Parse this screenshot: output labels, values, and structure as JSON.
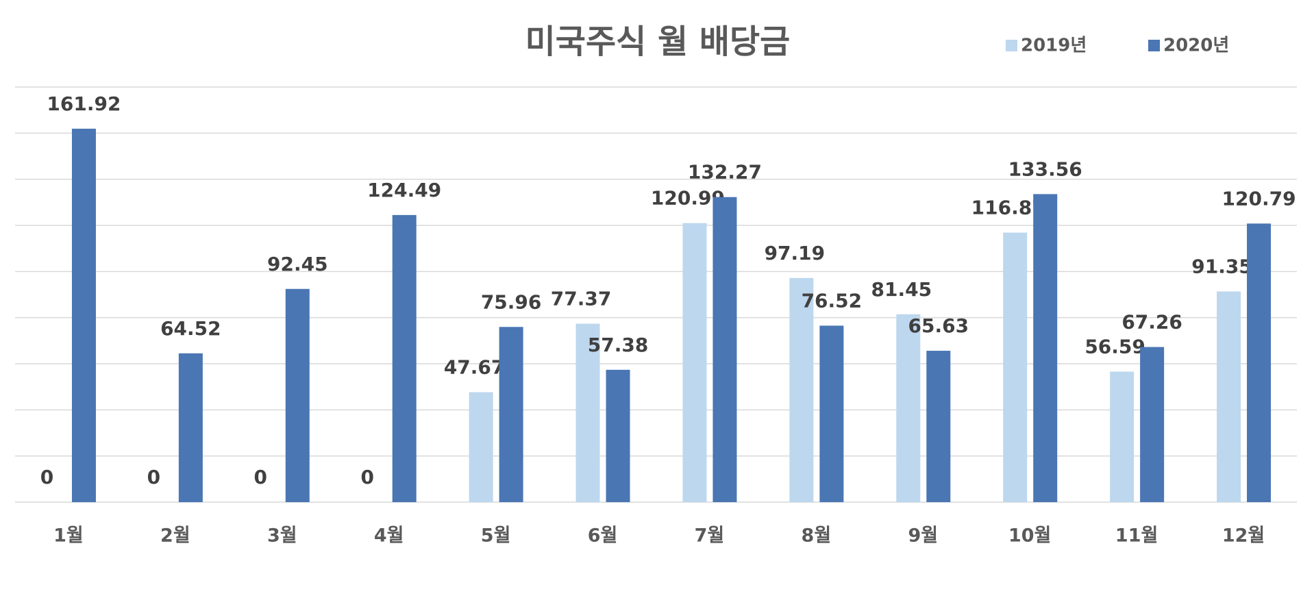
{
  "chart_data": {
    "type": "bar",
    "title": "미국주식 월 배당금",
    "categories": [
      "1월",
      "2월",
      "3월",
      "4월",
      "5월",
      "6월",
      "7월",
      "8월",
      "9월",
      "10월",
      "11월",
      "12월"
    ],
    "series": [
      {
        "name": "2019년",
        "color": "#bdd7ee",
        "values": [
          0,
          0,
          0,
          0,
          47.67,
          77.37,
          120.99,
          97.19,
          81.45,
          116.87,
          56.59,
          91.35
        ]
      },
      {
        "name": "2020년",
        "color": "#4a76b3",
        "values": [
          161.92,
          64.52,
          92.45,
          124.49,
          75.96,
          57.38,
          132.27,
          76.52,
          65.63,
          133.56,
          67.26,
          120.79
        ]
      }
    ],
    "ylim": [
      0,
      180
    ],
    "yticks": [
      0,
      20,
      40,
      60,
      80,
      100,
      120,
      140,
      160,
      180
    ],
    "grid": true,
    "legend": "top-right",
    "data_labels": true
  }
}
